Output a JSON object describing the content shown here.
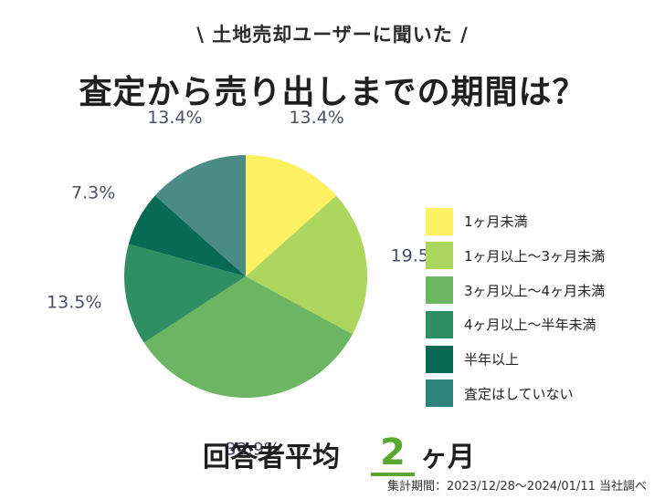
{
  "header": {
    "subtitle": "\\ 土地売却ユーザーに聞いた /",
    "title": "査定から売り出しまでの期間は？"
  },
  "chart_data": {
    "type": "pie",
    "categories": [
      "1ヶ月未満",
      "1ヶ月以上〜3ヶ月未満",
      "3ヶ月以上〜4ヶ月未満",
      "4ヶ月以上〜半年未満",
      "半年以上",
      "査定はしていない"
    ],
    "values": [
      13.4,
      19.5,
      32.9,
      13.5,
      7.3,
      13.4
    ],
    "value_labels": [
      "13.4%",
      "19.5%",
      "32.9%",
      "13.5%",
      "7.3%",
      "13.4%"
    ],
    "colors": [
      "#fdf063",
      "#add65e",
      "#6cb562",
      "#2f8e62",
      "#086a55",
      "#4a8c83"
    ],
    "legend_colors": [
      "#fdf063",
      "#add65e",
      "#6cb562",
      "#2f8e62",
      "#086a55",
      "#2e847a"
    ],
    "start": "12 o'clock",
    "direction": "clockwise",
    "legend": "right"
  },
  "footer": {
    "avg_label": "回答者平均",
    "avg_value": "2",
    "avg_unit": "ヶ月",
    "note": "集計期間：2023/12/28〜2024/01/11 当社調べ"
  }
}
